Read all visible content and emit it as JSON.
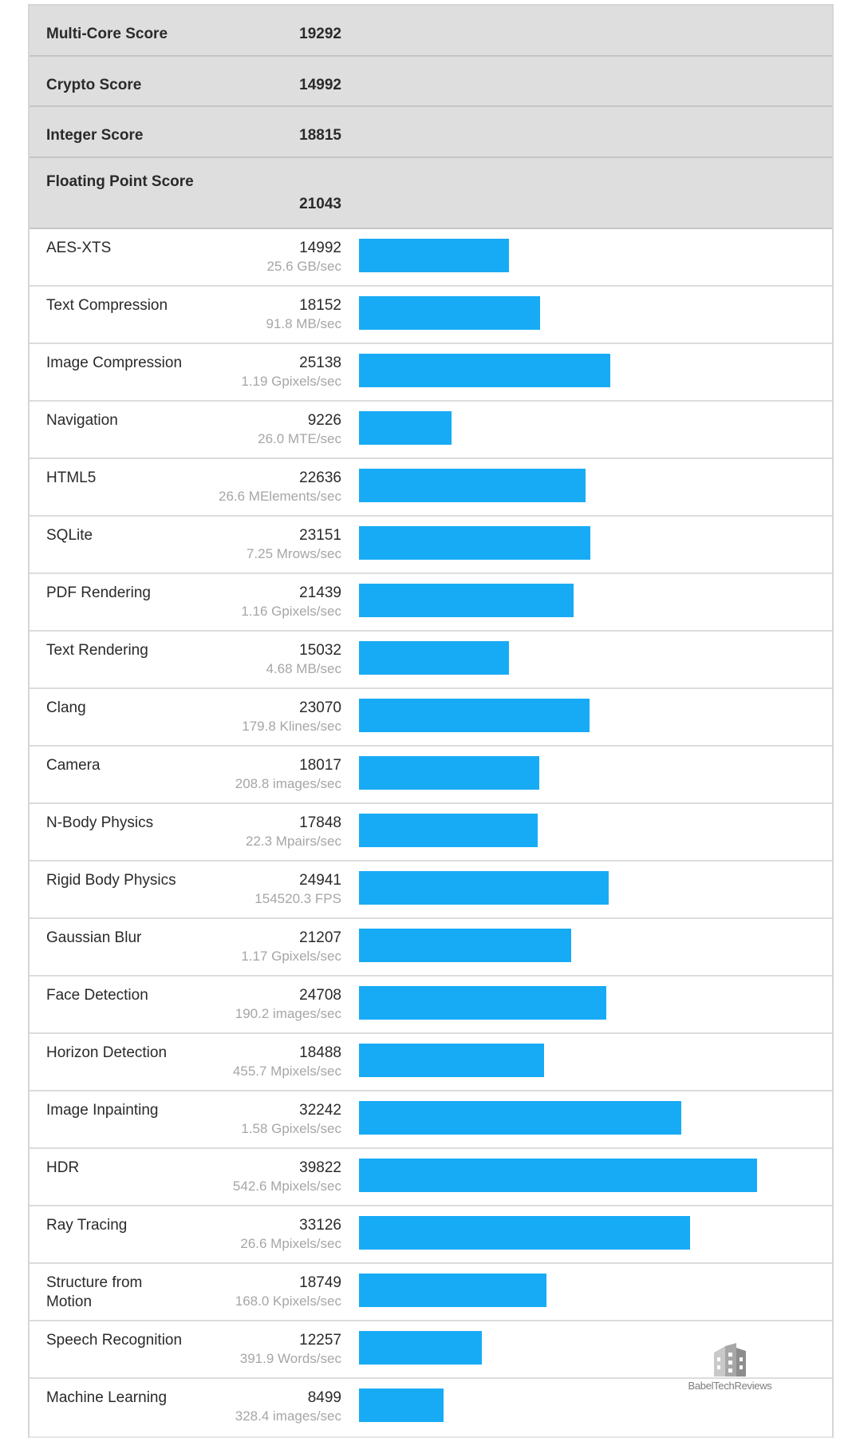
{
  "summary": [
    {
      "label": "Multi-Core Score",
      "value": "19292"
    },
    {
      "label": "Crypto Score",
      "value": "14992"
    },
    {
      "label": "Integer Score",
      "value": "18815"
    },
    {
      "label": "Floating Point Score",
      "value": "21043"
    }
  ],
  "benchmarks": [
    {
      "name": "AES-XTS",
      "score": "14992",
      "rate": "25.6 GB/sec"
    },
    {
      "name": "Text Compression",
      "score": "18152",
      "rate": "91.8 MB/sec"
    },
    {
      "name": "Image Compression",
      "score": "25138",
      "rate": "1.19 Gpixels/sec"
    },
    {
      "name": "Navigation",
      "score": "9226",
      "rate": "26.0 MTE/sec"
    },
    {
      "name": "HTML5",
      "score": "22636",
      "rate": "26.6 MElements/sec"
    },
    {
      "name": "SQLite",
      "score": "23151",
      "rate": "7.25 Mrows/sec"
    },
    {
      "name": "PDF Rendering",
      "score": "21439",
      "rate": "1.16 Gpixels/sec"
    },
    {
      "name": "Text Rendering",
      "score": "15032",
      "rate": "4.68 MB/sec"
    },
    {
      "name": "Clang",
      "score": "23070",
      "rate": "179.8 Klines/sec"
    },
    {
      "name": "Camera",
      "score": "18017",
      "rate": "208.8 images/sec"
    },
    {
      "name": "N-Body Physics",
      "score": "17848",
      "rate": "22.3 Mpairs/sec"
    },
    {
      "name": "Rigid Body Physics",
      "score": "24941",
      "rate": "154520.3 FPS"
    },
    {
      "name": "Gaussian Blur",
      "score": "21207",
      "rate": "1.17 Gpixels/sec"
    },
    {
      "name": "Face Detection",
      "score": "24708",
      "rate": "190.2 images/sec"
    },
    {
      "name": "Horizon Detection",
      "score": "18488",
      "rate": "455.7 Mpixels/sec"
    },
    {
      "name": "Image Inpainting",
      "score": "32242",
      "rate": "1.58 Gpixels/sec"
    },
    {
      "name": "HDR",
      "score": "39822",
      "rate": "542.6 Mpixels/sec"
    },
    {
      "name": "Ray Tracing",
      "score": "33126",
      "rate": "26.6 Mpixels/sec"
    },
    {
      "name": "Structure from Motion",
      "score": "18749",
      "rate": "168.0 Kpixels/sec"
    },
    {
      "name": "Speech Recognition",
      "score": "12257",
      "rate": "391.9 Words/sec"
    },
    {
      "name": "Machine Learning",
      "score": "8499",
      "rate": "328.4 images/sec"
    }
  ],
  "chart_data": {
    "type": "bar",
    "orientation": "horizontal",
    "categories": [
      "AES-XTS",
      "Text Compression",
      "Image Compression",
      "Navigation",
      "HTML5",
      "SQLite",
      "PDF Rendering",
      "Text Rendering",
      "Clang",
      "Camera",
      "N-Body Physics",
      "Rigid Body Physics",
      "Gaussian Blur",
      "Face Detection",
      "Horizon Detection",
      "Image Inpainting",
      "HDR",
      "Ray Tracing",
      "Structure from Motion",
      "Speech Recognition",
      "Machine Learning"
    ],
    "values": [
      14992,
      18152,
      25138,
      9226,
      22636,
      23151,
      21439,
      15032,
      23070,
      18017,
      17848,
      24941,
      21207,
      24708,
      18488,
      32242,
      39822,
      33126,
      18749,
      12257,
      8499
    ],
    "xlim": [
      0,
      39822
    ],
    "bar_color": "#18abf5",
    "grid": false
  },
  "watermark": {
    "text": "BabelTechReviews"
  }
}
